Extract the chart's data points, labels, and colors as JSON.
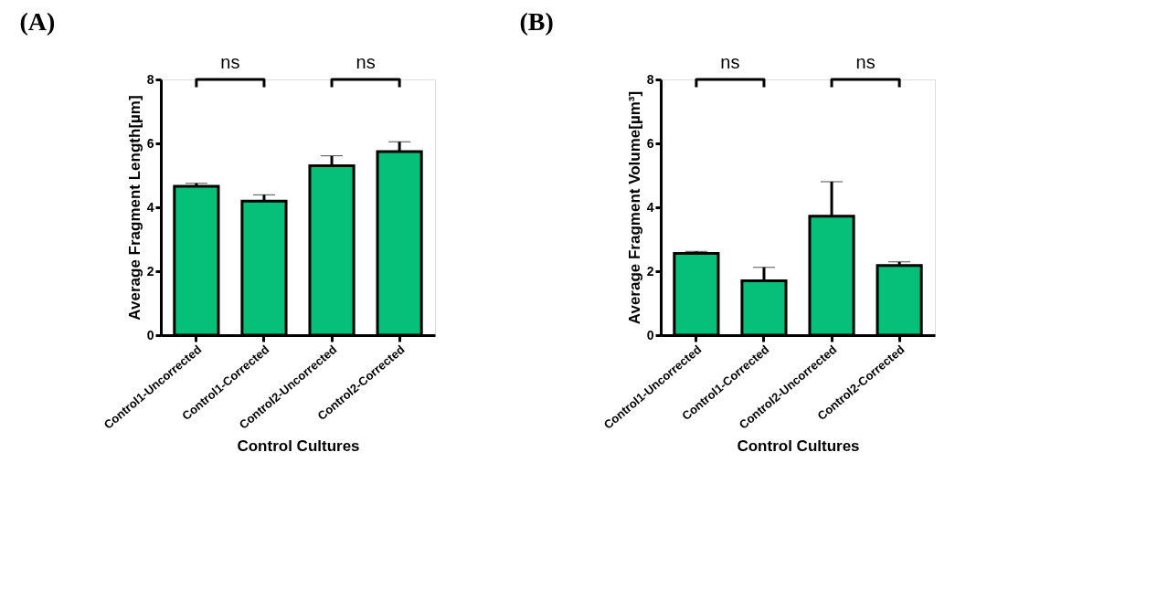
{
  "chart_data": [
    {
      "type": "bar",
      "title": "(A)",
      "xlabel": "Control Cultures",
      "ylabel": "Average Fragment Length[µm]",
      "categories": [
        "Control1-Uncorrected",
        "Control1-Corrected",
        "Control2-Uncorrected",
        "Control2-Corrected"
      ],
      "values": [
        4.66,
        4.19,
        5.3,
        5.74
      ],
      "color": "#06bf78",
      "errors": [
        [
          4.66,
          4.75
        ],
        [
          4.19,
          4.39
        ],
        [
          5.3,
          5.61
        ],
        [
          5.74,
          6.05
        ]
      ],
      "ylim": [
        0,
        8
      ],
      "yticks": [
        0,
        2,
        4,
        6,
        8
      ],
      "grid": false,
      "annotations": [
        "ns",
        "ns"
      ]
    },
    {
      "type": "bar",
      "title": "(B)",
      "xlabel": "Control Cultures",
      "ylabel": "Average Fragment Volume[µm³]",
      "categories": [
        "Control1-Uncorrected",
        "Control1-Corrected",
        "Control2-Uncorrected",
        "Control2-Corrected"
      ],
      "values": [
        2.56,
        1.7,
        3.72,
        2.18
      ],
      "color": "#06bf78",
      "errors": [
        [
          2.56,
          2.62
        ],
        [
          1.7,
          2.12
        ],
        [
          3.72,
          4.8
        ],
        [
          2.18,
          2.29
        ]
      ],
      "ylim": [
        0,
        8
      ],
      "yticks": [
        0,
        2,
        4,
        6,
        8
      ],
      "grid": false,
      "annotations": [
        "ns",
        "ns"
      ]
    }
  ]
}
